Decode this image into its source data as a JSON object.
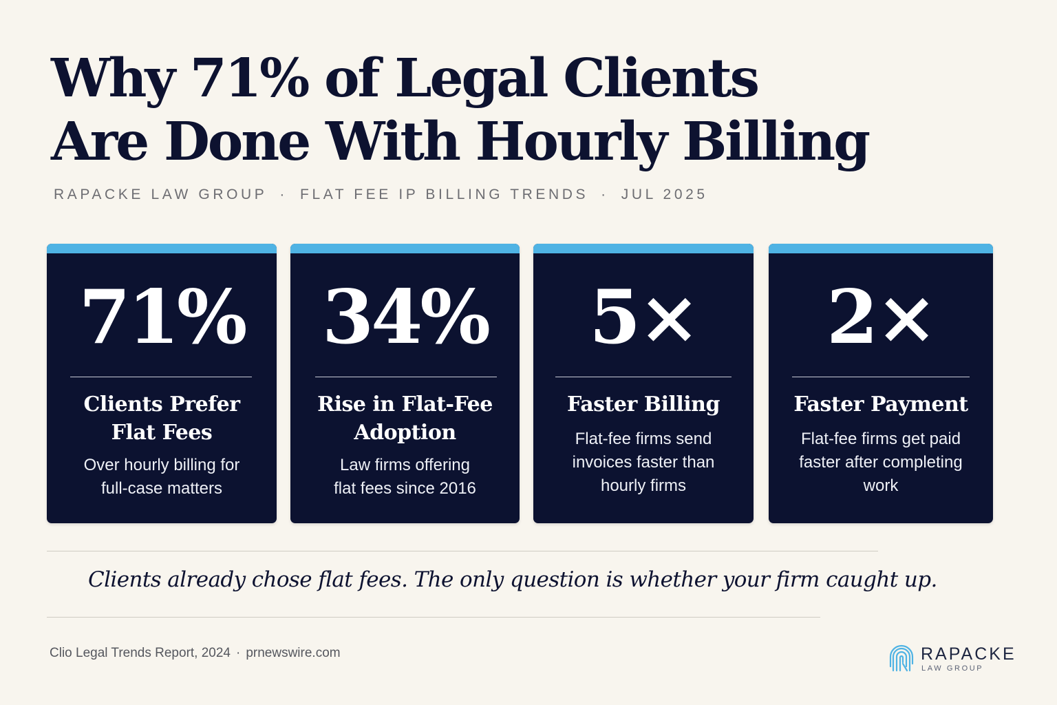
{
  "headline": {
    "line1": "Why 71% of Legal Clients",
    "line2": "Are Done With Hourly Billing"
  },
  "subline": {
    "firm": "RAPACKE LAW GROUP",
    "topic": "FLAT FEE IP BILLING TRENDS",
    "date": "JUL 2025",
    "separator": "·"
  },
  "stats": [
    {
      "value": "71%",
      "title_lines": [
        "Clients Prefer",
        "Flat Fees"
      ],
      "description_lines": [
        "Over hourly billing for",
        "full-case matters"
      ]
    },
    {
      "value": "34%",
      "title_lines": [
        "Rise in Flat-Fee",
        "Adoption"
      ],
      "description_lines": [
        "Law firms offering",
        "flat fees since 2016"
      ]
    },
    {
      "value": "5×",
      "title_lines": [
        "Faster Billing"
      ],
      "description_lines": [
        "Flat-fee firms send",
        "invoices faster than",
        "hourly firms"
      ]
    },
    {
      "value": "2×",
      "title_lines": [
        "Faster Payment"
      ],
      "description_lines": [
        "Flat-fee firms get paid",
        "faster after completing",
        "work"
      ]
    }
  ],
  "tagline": "Clients already chose flat fees. The only question is whether your firm caught up.",
  "source": {
    "report": "Clio Legal Trends Report, 2024",
    "separator": "·",
    "site": "prnewswire.com"
  },
  "logo": {
    "name": "RAPACKE",
    "subtitle": "LAW GROUP",
    "mark_icon": "fingerprint-r-icon"
  },
  "colors": {
    "background": "#f8f5ee",
    "card": "#0c1230",
    "accent": "#4fb3e4",
    "text_dark": "#0d1230"
  }
}
